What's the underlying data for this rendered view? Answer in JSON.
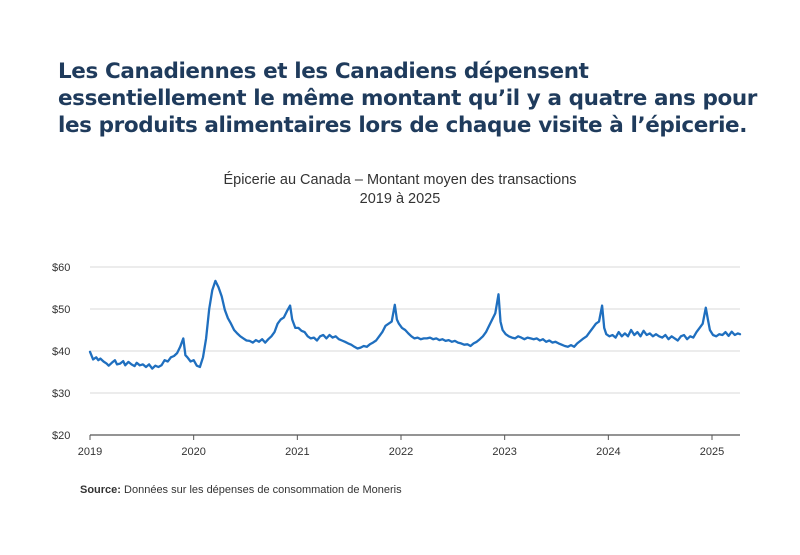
{
  "headline": "Les Canadiennes et les Canadiens dépensent essentiellement le même montant qu’il y a quatre ans pour les produits alimentaires lors de chaque visite à l’épicerie.",
  "source": {
    "label": "Source:",
    "text": " Données sur les dépenses de consommation de Moneris"
  },
  "colors": {
    "line": "#1f6fbf",
    "grid": "#d9d9d9",
    "headline": "#1f3b5c"
  },
  "chart_data": {
    "type": "line",
    "title": "Épicerie au Canada – Montant moyen des transactions",
    "subtitle": "2019 à 2025",
    "xlabel": "",
    "ylabel": "",
    "x_tick_labels": [
      "2019",
      "2020",
      "2021",
      "2022",
      "2023",
      "2024",
      "2025"
    ],
    "y_tick_labels": [
      "$60",
      "$50",
      "$40",
      "$30",
      "$20"
    ],
    "y_ticks": [
      60,
      50,
      40,
      30,
      20
    ],
    "ylim": [
      20,
      60
    ],
    "xlim": [
      2019.0,
      2025.27
    ],
    "grid": "horizontal",
    "legend": "none",
    "series": [
      {
        "points": [
          [
            2019.0,
            39.8
          ],
          [
            2019.03,
            38.0
          ],
          [
            2019.06,
            38.5
          ],
          [
            2019.08,
            37.8
          ],
          [
            2019.1,
            38.2
          ],
          [
            2019.13,
            37.5
          ],
          [
            2019.16,
            37.0
          ],
          [
            2019.18,
            36.5
          ],
          [
            2019.21,
            37.2
          ],
          [
            2019.24,
            37.8
          ],
          [
            2019.26,
            36.8
          ],
          [
            2019.29,
            37.0
          ],
          [
            2019.32,
            37.6
          ],
          [
            2019.34,
            36.6
          ],
          [
            2019.37,
            37.4
          ],
          [
            2019.4,
            36.8
          ],
          [
            2019.43,
            36.4
          ],
          [
            2019.45,
            37.2
          ],
          [
            2019.48,
            36.6
          ],
          [
            2019.51,
            36.8
          ],
          [
            2019.54,
            36.2
          ],
          [
            2019.57,
            36.8
          ],
          [
            2019.6,
            35.8
          ],
          [
            2019.63,
            36.5
          ],
          [
            2019.66,
            36.2
          ],
          [
            2019.69,
            36.6
          ],
          [
            2019.72,
            37.8
          ],
          [
            2019.75,
            37.5
          ],
          [
            2019.78,
            38.5
          ],
          [
            2019.81,
            38.8
          ],
          [
            2019.84,
            39.5
          ],
          [
            2019.87,
            41.0
          ],
          [
            2019.9,
            43.0
          ],
          [
            2019.92,
            39.0
          ],
          [
            2019.94,
            38.5
          ],
          [
            2019.97,
            37.5
          ],
          [
            2020.0,
            37.8
          ],
          [
            2020.03,
            36.5
          ],
          [
            2020.06,
            36.2
          ],
          [
            2020.09,
            38.5
          ],
          [
            2020.12,
            43.0
          ],
          [
            2020.15,
            50.0
          ],
          [
            2020.18,
            54.5
          ],
          [
            2020.21,
            56.7
          ],
          [
            2020.24,
            55.2
          ],
          [
            2020.27,
            53.0
          ],
          [
            2020.3,
            49.8
          ],
          [
            2020.33,
            47.8
          ],
          [
            2020.36,
            46.5
          ],
          [
            2020.39,
            45.0
          ],
          [
            2020.42,
            44.2
          ],
          [
            2020.45,
            43.5
          ],
          [
            2020.48,
            43.0
          ],
          [
            2020.51,
            42.5
          ],
          [
            2020.54,
            42.4
          ],
          [
            2020.57,
            42.0
          ],
          [
            2020.6,
            42.6
          ],
          [
            2020.63,
            42.2
          ],
          [
            2020.66,
            42.8
          ],
          [
            2020.69,
            42.0
          ],
          [
            2020.72,
            42.8
          ],
          [
            2020.75,
            43.5
          ],
          [
            2020.78,
            44.5
          ],
          [
            2020.81,
            46.5
          ],
          [
            2020.84,
            47.5
          ],
          [
            2020.87,
            48.0
          ],
          [
            2020.9,
            49.5
          ],
          [
            2020.93,
            50.8
          ],
          [
            2020.95,
            47.5
          ],
          [
            2020.98,
            45.5
          ],
          [
            2021.01,
            45.5
          ],
          [
            2021.04,
            44.8
          ],
          [
            2021.07,
            44.5
          ],
          [
            2021.1,
            43.5
          ],
          [
            2021.13,
            43.0
          ],
          [
            2021.16,
            43.2
          ],
          [
            2021.19,
            42.5
          ],
          [
            2021.22,
            43.5
          ],
          [
            2021.25,
            43.8
          ],
          [
            2021.28,
            43.0
          ],
          [
            2021.31,
            43.8
          ],
          [
            2021.34,
            43.2
          ],
          [
            2021.37,
            43.5
          ],
          [
            2021.4,
            42.8
          ],
          [
            2021.43,
            42.5
          ],
          [
            2021.46,
            42.2
          ],
          [
            2021.49,
            41.8
          ],
          [
            2021.52,
            41.5
          ],
          [
            2021.55,
            41.0
          ],
          [
            2021.58,
            40.6
          ],
          [
            2021.61,
            40.8
          ],
          [
            2021.64,
            41.2
          ],
          [
            2021.67,
            41.0
          ],
          [
            2021.7,
            41.6
          ],
          [
            2021.73,
            42.0
          ],
          [
            2021.76,
            42.5
          ],
          [
            2021.79,
            43.5
          ],
          [
            2021.82,
            44.5
          ],
          [
            2021.85,
            46.0
          ],
          [
            2021.88,
            46.5
          ],
          [
            2021.91,
            47.0
          ],
          [
            2021.94,
            51.0
          ],
          [
            2021.96,
            47.5
          ],
          [
            2021.98,
            46.5
          ],
          [
            2022.01,
            45.5
          ],
          [
            2022.04,
            45.0
          ],
          [
            2022.07,
            44.2
          ],
          [
            2022.1,
            43.5
          ],
          [
            2022.13,
            43.0
          ],
          [
            2022.16,
            43.2
          ],
          [
            2022.19,
            42.8
          ],
          [
            2022.22,
            43.0
          ],
          [
            2022.25,
            43.0
          ],
          [
            2022.28,
            43.2
          ],
          [
            2022.31,
            42.8
          ],
          [
            2022.34,
            43.0
          ],
          [
            2022.37,
            42.6
          ],
          [
            2022.4,
            42.8
          ],
          [
            2022.43,
            42.4
          ],
          [
            2022.46,
            42.6
          ],
          [
            2022.49,
            42.2
          ],
          [
            2022.52,
            42.4
          ],
          [
            2022.55,
            42.0
          ],
          [
            2022.58,
            41.8
          ],
          [
            2022.61,
            41.5
          ],
          [
            2022.64,
            41.6
          ],
          [
            2022.67,
            41.2
          ],
          [
            2022.7,
            41.8
          ],
          [
            2022.73,
            42.2
          ],
          [
            2022.76,
            42.8
          ],
          [
            2022.79,
            43.5
          ],
          [
            2022.82,
            44.5
          ],
          [
            2022.85,
            46.0
          ],
          [
            2022.88,
            47.5
          ],
          [
            2022.91,
            49.0
          ],
          [
            2022.94,
            53.5
          ],
          [
            2022.96,
            47.0
          ],
          [
            2022.98,
            45.0
          ],
          [
            2023.01,
            44.0
          ],
          [
            2023.04,
            43.5
          ],
          [
            2023.07,
            43.2
          ],
          [
            2023.1,
            43.0
          ],
          [
            2023.13,
            43.5
          ],
          [
            2023.16,
            43.2
          ],
          [
            2023.19,
            42.8
          ],
          [
            2023.22,
            43.2
          ],
          [
            2023.25,
            43.0
          ],
          [
            2023.28,
            42.8
          ],
          [
            2023.31,
            43.0
          ],
          [
            2023.34,
            42.5
          ],
          [
            2023.37,
            42.8
          ],
          [
            2023.4,
            42.2
          ],
          [
            2023.43,
            42.5
          ],
          [
            2023.46,
            42.0
          ],
          [
            2023.49,
            42.2
          ],
          [
            2023.52,
            41.8
          ],
          [
            2023.55,
            41.5
          ],
          [
            2023.58,
            41.2
          ],
          [
            2023.61,
            41.0
          ],
          [
            2023.64,
            41.4
          ],
          [
            2023.67,
            41.0
          ],
          [
            2023.7,
            41.8
          ],
          [
            2023.73,
            42.4
          ],
          [
            2023.76,
            43.0
          ],
          [
            2023.79,
            43.5
          ],
          [
            2023.82,
            44.5
          ],
          [
            2023.85,
            45.5
          ],
          [
            2023.88,
            46.5
          ],
          [
            2023.91,
            47.0
          ],
          [
            2023.94,
            50.8
          ],
          [
            2023.96,
            45.5
          ],
          [
            2023.98,
            44.0
          ],
          [
            2024.01,
            43.5
          ],
          [
            2024.04,
            43.8
          ],
          [
            2024.07,
            43.2
          ],
          [
            2024.1,
            44.5
          ],
          [
            2024.13,
            43.5
          ],
          [
            2024.16,
            44.2
          ],
          [
            2024.19,
            43.5
          ],
          [
            2024.22,
            45.0
          ],
          [
            2024.25,
            43.8
          ],
          [
            2024.28,
            44.5
          ],
          [
            2024.31,
            43.5
          ],
          [
            2024.34,
            44.8
          ],
          [
            2024.37,
            43.8
          ],
          [
            2024.4,
            44.2
          ],
          [
            2024.43,
            43.5
          ],
          [
            2024.46,
            44.0
          ],
          [
            2024.49,
            43.5
          ],
          [
            2024.52,
            43.2
          ],
          [
            2024.55,
            43.8
          ],
          [
            2024.58,
            42.8
          ],
          [
            2024.61,
            43.5
          ],
          [
            2024.64,
            43.0
          ],
          [
            2024.67,
            42.5
          ],
          [
            2024.7,
            43.5
          ],
          [
            2024.73,
            43.8
          ],
          [
            2024.76,
            42.8
          ],
          [
            2024.79,
            43.5
          ],
          [
            2024.82,
            43.2
          ],
          [
            2024.85,
            44.5
          ],
          [
            2024.88,
            45.5
          ],
          [
            2024.91,
            46.5
          ],
          [
            2024.94,
            50.3
          ],
          [
            2024.96,
            47.5
          ],
          [
            2024.98,
            45.0
          ],
          [
            2025.01,
            43.8
          ],
          [
            2025.04,
            43.5
          ],
          [
            2025.07,
            44.0
          ],
          [
            2025.1,
            43.8
          ],
          [
            2025.13,
            44.5
          ],
          [
            2025.16,
            43.6
          ],
          [
            2025.19,
            44.6
          ],
          [
            2025.22,
            43.8
          ],
          [
            2025.25,
            44.2
          ],
          [
            2025.27,
            44.0
          ]
        ]
      }
    ]
  }
}
